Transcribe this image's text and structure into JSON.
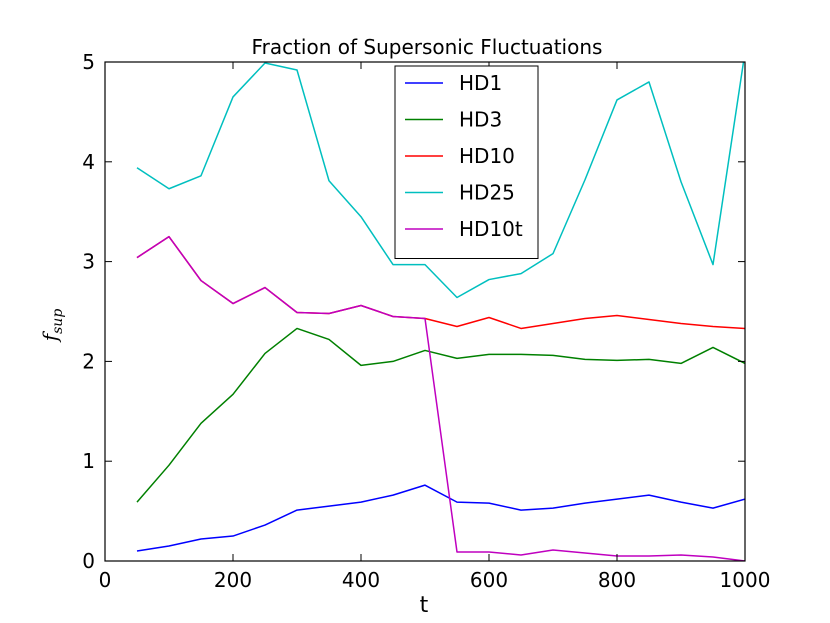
{
  "chart_data": {
    "type": "line",
    "title": "Fraction of Supersonic Fluctuations",
    "xlabel": "t",
    "ylabel": "f",
    "ylabel_sub": "sup",
    "xlim": [
      0,
      1000
    ],
    "ylim": [
      0,
      5
    ],
    "x_ticks": [
      "0",
      "200",
      "400",
      "600",
      "800",
      "1000"
    ],
    "y_ticks": [
      "0",
      "1",
      "2",
      "3",
      "4",
      "5"
    ],
    "grid": false,
    "legend_position": "top-center",
    "x": [
      50,
      100,
      150,
      200,
      250,
      300,
      350,
      400,
      450,
      500,
      550,
      600,
      650,
      700,
      750,
      800,
      850,
      900,
      950,
      1000
    ],
    "series": [
      {
        "name": "HD1",
        "color": "#0000ff",
        "values": [
          0.1,
          0.15,
          0.22,
          0.25,
          0.36,
          0.51,
          0.55,
          0.59,
          0.66,
          0.76,
          0.59,
          0.58,
          0.51,
          0.53,
          0.58,
          0.62,
          0.66,
          0.59,
          0.53,
          0.62
        ]
      },
      {
        "name": "HD3",
        "color": "#008000",
        "values": [
          0.59,
          0.96,
          1.38,
          1.67,
          2.08,
          2.33,
          2.22,
          1.96,
          2.0,
          2.11,
          2.03,
          2.07,
          2.07,
          2.06,
          2.02,
          2.01,
          2.02,
          1.98,
          2.14,
          1.98
        ]
      },
      {
        "name": "HD10",
        "color": "#ff0000",
        "values": [
          3.04,
          3.25,
          2.81,
          2.58,
          2.74,
          2.49,
          2.48,
          2.56,
          2.45,
          2.43,
          2.35,
          2.44,
          2.33,
          2.38,
          2.43,
          2.46,
          2.42,
          2.38,
          2.35,
          2.33
        ]
      },
      {
        "name": "HD25",
        "color": "#00bfbf",
        "values": [
          3.94,
          3.73,
          3.86,
          4.65,
          4.99,
          4.92,
          3.81,
          3.45,
          2.97,
          2.97,
          2.64,
          2.82,
          2.88,
          3.08,
          3.82,
          4.62,
          4.8,
          3.8,
          2.97,
          5.1
        ]
      },
      {
        "name": "HD10t",
        "color": "#bf00bf",
        "values": [
          3.04,
          3.25,
          2.81,
          2.58,
          2.74,
          2.49,
          2.48,
          2.56,
          2.45,
          2.43,
          0.09,
          0.09,
          0.06,
          0.11,
          0.08,
          0.05,
          0.05,
          0.06,
          0.04,
          0.0
        ]
      }
    ]
  }
}
